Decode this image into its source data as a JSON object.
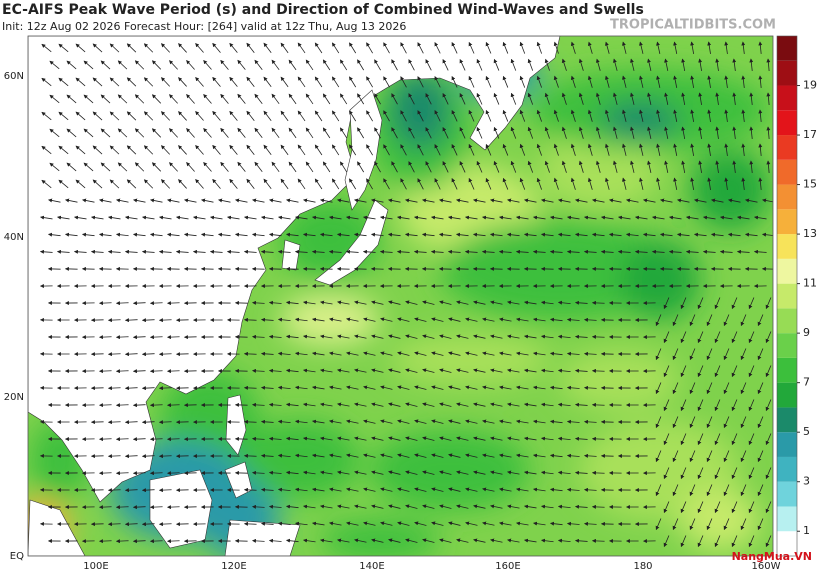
{
  "header": {
    "title": "EC-AIFS Peak Wave Period (s) and Direction of Combined Wind-Waves and Swells",
    "subtitle": "Init: 12z Aug 02 2026   Forecast Hour: [264]   valid at 12z Thu, Aug 13 2026",
    "site": "TROPICALTIDBITS.COM"
  },
  "map": {
    "lat_labels": [
      "60N",
      "40N",
      "20N",
      "EQ"
    ],
    "lon_labels": [
      "100E",
      "120E",
      "140E",
      "160E",
      "180",
      "160W"
    ]
  },
  "colorbar": {
    "range": [
      0,
      21
    ],
    "ticks": [
      1,
      3,
      5,
      7,
      9,
      11,
      13,
      15,
      17,
      19
    ],
    "colors": [
      "#ffffff",
      "#b7f0f0",
      "#6fd3dc",
      "#3fb3c0",
      "#2a9aa8",
      "#1b8a6a",
      "#22a83a",
      "#3cbf3c",
      "#6ad04a",
      "#97dc55",
      "#c6ea6a",
      "#eef7a0",
      "#f7e35a",
      "#f6b03a",
      "#f39033",
      "#f06a2a",
      "#ea3a22",
      "#e3141a",
      "#c8101a",
      "#9e0e14",
      "#7a0c10"
    ]
  },
  "watermark": "NangMua.VN"
}
